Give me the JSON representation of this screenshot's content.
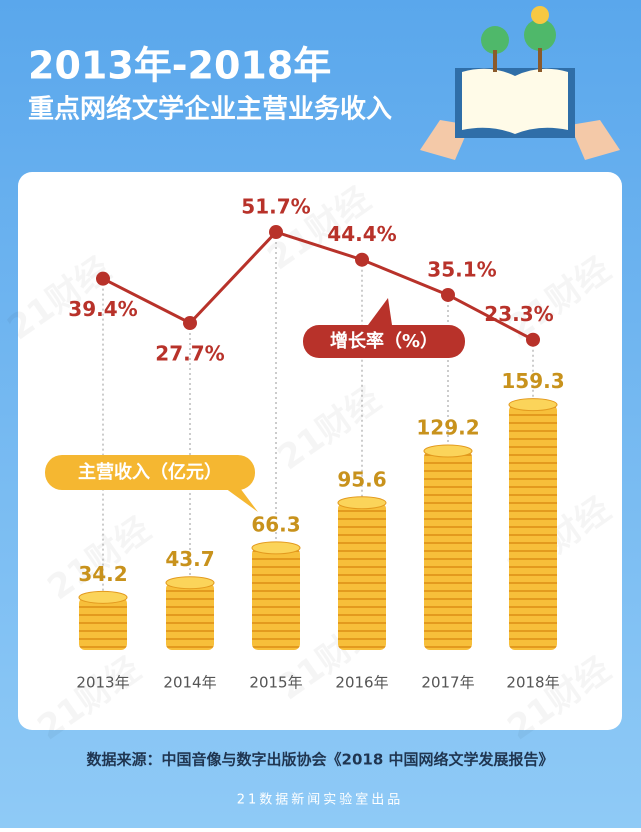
{
  "title": "2013年-2018年",
  "subtitle": "重点网络文学企业主营业务收入",
  "watermark": "21财经",
  "chart_data": {
    "type": "bar",
    "categories": [
      "2013年",
      "2014年",
      "2015年",
      "2016年",
      "2017年",
      "2018年"
    ],
    "series": [
      {
        "name": "主营收入（亿元）",
        "type": "bar",
        "color": "#f5b731",
        "label_color": "#c8921c",
        "values": [
          34.2,
          43.7,
          66.3,
          95.6,
          129.2,
          159.3
        ]
      },
      {
        "name": "增长率（%）",
        "type": "line",
        "color": "#b8322a",
        "values": [
          39.4,
          27.7,
          51.7,
          44.4,
          35.1,
          23.3
        ],
        "value_labels": [
          "39.4%",
          "27.7%",
          "51.7%",
          "44.4%",
          "35.1%",
          "23.3%"
        ]
      }
    ]
  },
  "source": "数据来源：中国音像与数字出版协会《2018 中国网络文学发展报告》",
  "credit": "21数据新闻实验室出品"
}
